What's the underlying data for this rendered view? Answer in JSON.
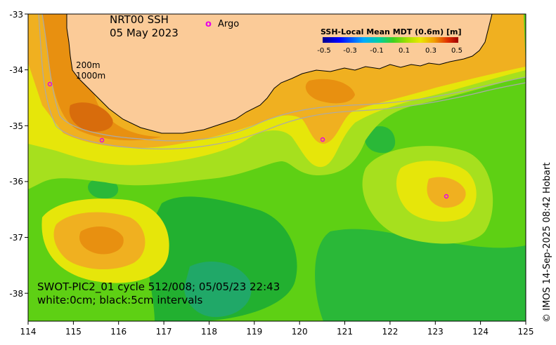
{
  "map": {
    "title_line1": "NRT00 SSH",
    "title_line2": "05 May 2023",
    "legend_argo_symbol": "o",
    "legend_argo_label": "Argo",
    "isobath_label_200": "200m",
    "isobath_label_1000": "1000m",
    "info_line1": "SWOT-PIC2_01 cycle 512/008; 05/05/23 22:43",
    "info_line2": "white:0cm; black:5cm intervals",
    "copyright": "© IMOS 14-Sep-2025 08:42 Hobart",
    "region": "Southwest Australia",
    "lon_range": [
      114,
      125
    ],
    "lat_range": [
      -38.5,
      -33
    ],
    "x_ticks": [
      "114",
      "115",
      "116",
      "117",
      "118",
      "119",
      "120",
      "121",
      "122",
      "123",
      "124",
      "125"
    ],
    "y_ticks": [
      "-33",
      "-34",
      "-35",
      "-36",
      "-37",
      "-38"
    ],
    "colorbar": {
      "title": "SSH-Local Mean MDT (0.6m) [m]",
      "ticks": [
        "-0.5",
        "-0.3",
        "-0.1",
        "0.1",
        "0.3",
        "0.5"
      ],
      "range": [
        -0.5,
        0.5
      ]
    },
    "colors": {
      "land": "#fbcb98",
      "ocean_base": "#5ed014",
      "argo": "#e600e6",
      "isobath": "#aaaaaa"
    }
  }
}
